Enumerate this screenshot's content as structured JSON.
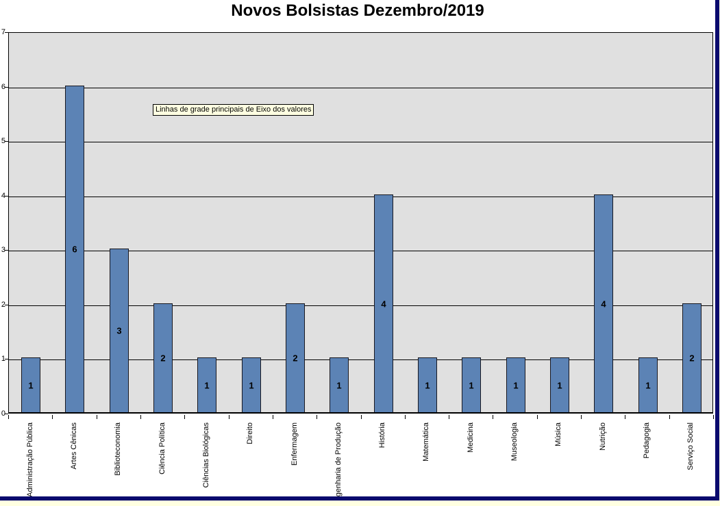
{
  "tooltip": {
    "text": "Linhas de grade principais de Eixo dos valores"
  },
  "chart_data": {
    "type": "bar",
    "title": "Novos Bolsistas Dezembro/2019",
    "categories": [
      "Administração Pública",
      "Artes Cênicas",
      "Biblioteconomia",
      "Ciência Política",
      "Ciências Biológicas",
      "Direito",
      "Enfermagem",
      "Engenharia de Produção",
      "História",
      "Matemática",
      "Medicina",
      "Museologia",
      "Música",
      "Nutrição",
      "Pedagogia",
      "Serviço Social"
    ],
    "values": [
      1,
      6,
      3,
      2,
      1,
      1,
      2,
      1,
      4,
      1,
      1,
      1,
      1,
      4,
      1,
      2
    ],
    "xlabel": "",
    "ylabel": "",
    "ylim": [
      0,
      7
    ],
    "yticks": [
      0,
      1,
      2,
      3,
      4,
      5,
      6,
      7
    ],
    "grid": true,
    "data_labels": true,
    "legend": "none",
    "colors": {
      "bar_fill": "#5C83B5",
      "bar_border": "#17171F",
      "plot_background": "#E0E0E0",
      "gridline": "#000000",
      "chart_background": "#FFFFFF",
      "chart_frame": "#0B0B6E",
      "tooltip_background": "#FFFFE1",
      "sheet_background": "#FFFFE1"
    }
  }
}
